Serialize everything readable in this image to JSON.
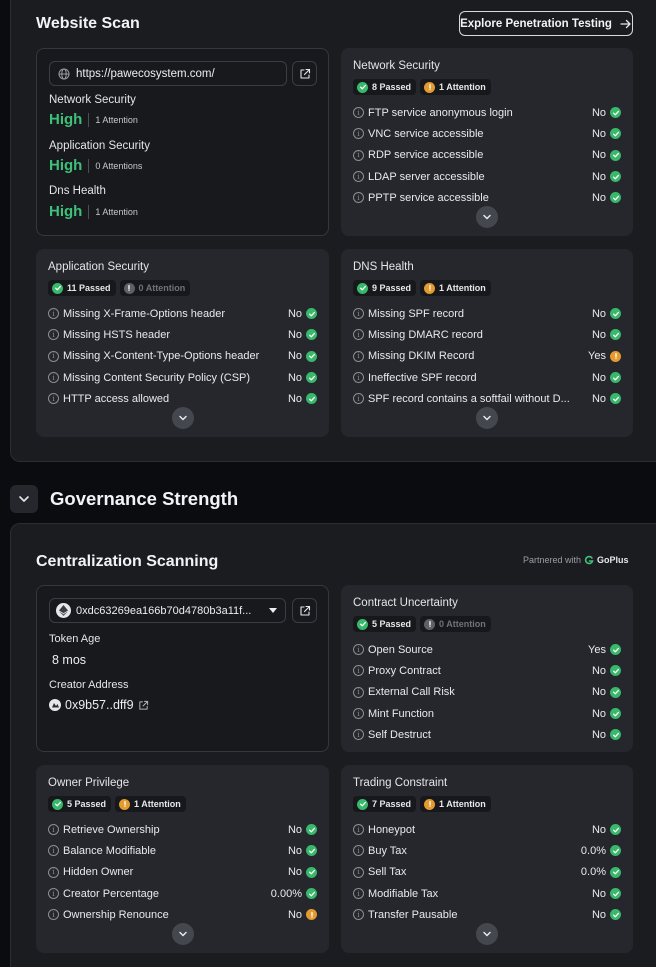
{
  "website_scan": {
    "title": "Website Scan",
    "explore_button": "Explore Penetration Testing",
    "summary": {
      "url": "https://pawecosystem.com/",
      "metrics": [
        {
          "label": "Network Security",
          "level": "High",
          "attention": "1 Attention"
        },
        {
          "label": "Application Security",
          "level": "High",
          "attention": "0 Attentions"
        },
        {
          "label": "Dns Health",
          "level": "High",
          "attention": "1 Attention"
        }
      ]
    },
    "network_security": {
      "title": "Network Security",
      "passed": "8 Passed",
      "attention": "1 Attention",
      "rows": [
        {
          "label": "FTP service anonymous login",
          "value": "No",
          "status": "green"
        },
        {
          "label": "VNC service accessible",
          "value": "No",
          "status": "green"
        },
        {
          "label": "RDP service accessible",
          "value": "No",
          "status": "green"
        },
        {
          "label": "LDAP server accessible",
          "value": "No",
          "status": "green"
        },
        {
          "label": "PPTP service accessible",
          "value": "No",
          "status": "green"
        }
      ]
    },
    "application_security": {
      "title": "Application Security",
      "passed": "11 Passed",
      "attention": "0 Attention",
      "rows": [
        {
          "label": "Missing X-Frame-Options header",
          "value": "No",
          "status": "green"
        },
        {
          "label": "Missing HSTS header",
          "value": "No",
          "status": "green"
        },
        {
          "label": "Missing X-Content-Type-Options header",
          "value": "No",
          "status": "green"
        },
        {
          "label": "Missing Content Security Policy (CSP)",
          "value": "No",
          "status": "green"
        },
        {
          "label": "HTTP access allowed",
          "value": "No",
          "status": "green"
        }
      ]
    },
    "dns_health": {
      "title": "DNS Health",
      "passed": "9 Passed",
      "attention": "1 Attention",
      "rows": [
        {
          "label": "Missing SPF record",
          "value": "No",
          "status": "green"
        },
        {
          "label": "Missing DMARC record",
          "value": "No",
          "status": "green"
        },
        {
          "label": "Missing DKIM Record",
          "value": "Yes",
          "status": "orange"
        },
        {
          "label": "Ineffective SPF record",
          "value": "No",
          "status": "green"
        },
        {
          "label": "SPF record contains a softfail without D...",
          "value": "No",
          "status": "green"
        }
      ]
    }
  },
  "governance": {
    "title": "Governance Strength"
  },
  "centralization": {
    "title": "Centralization Scanning",
    "partner_prefix": "Partnered with",
    "partner_name": "GoPlus",
    "token": {
      "address": "0xdc63269ea166b70d4780b3a11f...",
      "token_age_label": "Token Age",
      "token_age": "8 mos",
      "creator_label": "Creator Address",
      "creator": "0x9b57..dff9"
    },
    "contract_uncertainty": {
      "title": "Contract Uncertainty",
      "passed": "5 Passed",
      "attention": "0 Attention",
      "rows": [
        {
          "label": "Open Source",
          "value": "Yes",
          "status": "green"
        },
        {
          "label": "Proxy Contract",
          "value": "No",
          "status": "green"
        },
        {
          "label": "External Call Risk",
          "value": "No",
          "status": "green"
        },
        {
          "label": "Mint Function",
          "value": "No",
          "status": "green"
        },
        {
          "label": "Self Destruct",
          "value": "No",
          "status": "green"
        }
      ]
    },
    "owner_privilege": {
      "title": "Owner Privilege",
      "passed": "5 Passed",
      "attention": "1 Attention",
      "rows": [
        {
          "label": "Retrieve Ownership",
          "value": "No",
          "status": "green"
        },
        {
          "label": "Balance Modifiable",
          "value": "No",
          "status": "green"
        },
        {
          "label": "Hidden Owner",
          "value": "No",
          "status": "green"
        },
        {
          "label": "Creator Percentage",
          "value": "0.00%",
          "status": "green"
        },
        {
          "label": "Ownership Renounce",
          "value": "No",
          "status": "orange"
        }
      ]
    },
    "trading_constraint": {
      "title": "Trading Constraint",
      "passed": "7 Passed",
      "attention": "1 Attention",
      "rows": [
        {
          "label": "Honeypot",
          "value": "No",
          "status": "green"
        },
        {
          "label": "Buy Tax",
          "value": "0.0%",
          "status": "green"
        },
        {
          "label": "Sell Tax",
          "value": "0.0%",
          "status": "green"
        },
        {
          "label": "Modifiable Tax",
          "value": "No",
          "status": "green"
        },
        {
          "label": "Transfer Pausable",
          "value": "No",
          "status": "green"
        }
      ]
    }
  },
  "colors": {
    "accent_green": "#37b86a",
    "warning_orange": "#e39a2e",
    "high_text": "#3fc07a"
  },
  "icons": [
    "globe-icon",
    "external-link-icon",
    "check-icon",
    "exclamation-icon",
    "info-icon",
    "chevron-down-icon",
    "arrow-right-icon",
    "ethereum-icon",
    "creator-avatar-icon",
    "goplus-logo-icon"
  ]
}
